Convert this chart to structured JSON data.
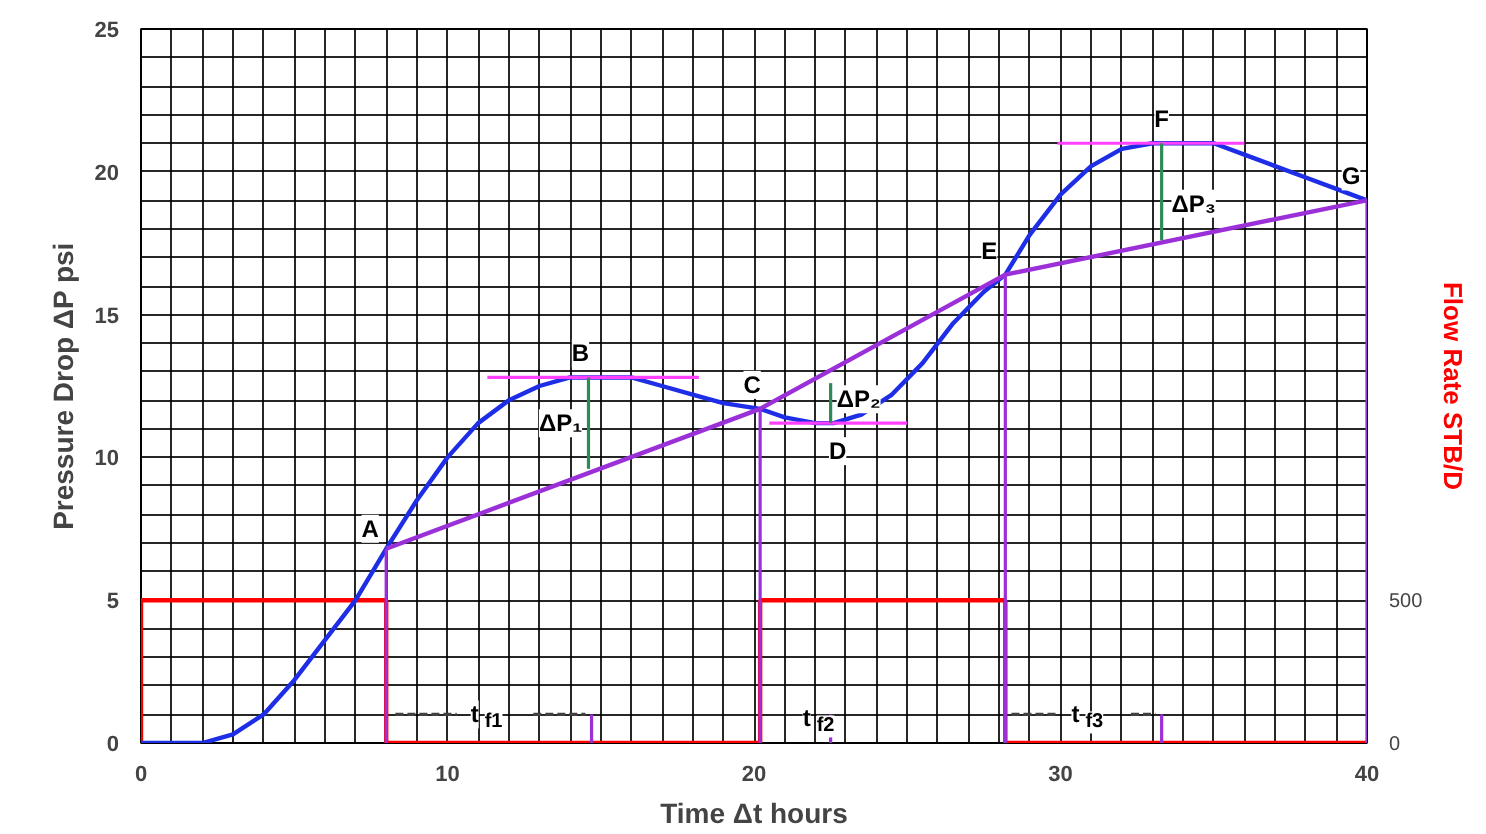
{
  "chart_data": {
    "type": "line",
    "xlabel": "Time Δt hours",
    "ylabel": "Pressure Drop ΔP psi",
    "y2label": "Flow Rate STB/D",
    "xlim": [
      0,
      40
    ],
    "ylim": [
      0,
      25
    ],
    "y2lim": [
      0,
      2500
    ],
    "xticks": [
      0,
      {
        "value": 1,
        "label": null
      },
      {
        "value": 2,
        "label": null
      },
      {
        "value": 3,
        "label": null
      },
      {
        "value": 4,
        "label": null
      },
      {
        "value": 5,
        "label": null
      },
      {
        "value": 6,
        "label": null
      },
      {
        "value": 7,
        "label": null
      },
      {
        "value": 8,
        "label": null
      },
      {
        "value": 9,
        "label": null
      },
      10,
      {
        "value": 11,
        "label": null
      },
      {
        "value": 12,
        "label": null
      },
      {
        "value": 13,
        "label": null
      },
      {
        "value": 14,
        "label": null
      },
      {
        "value": 15,
        "label": null
      },
      {
        "value": 16,
        "label": null
      },
      {
        "value": 17,
        "label": null
      },
      {
        "value": 18,
        "label": null
      },
      {
        "value": 19,
        "label": null
      },
      20,
      {
        "value": 21,
        "label": null
      },
      {
        "value": 22,
        "label": null
      },
      {
        "value": 23,
        "label": null
      },
      {
        "value": 24,
        "label": null
      },
      {
        "value": 25,
        "label": null
      },
      {
        "value": 26,
        "label": null
      },
      {
        "value": 27,
        "label": null
      },
      {
        "value": 28,
        "label": null
      },
      {
        "value": 29,
        "label": null
      },
      30,
      {
        "value": 31,
        "label": null
      },
      {
        "value": 32,
        "label": null
      },
      {
        "value": 33,
        "label": null
      },
      {
        "value": 34,
        "label": null
      },
      {
        "value": 35,
        "label": null
      },
      {
        "value": 36,
        "label": null
      },
      {
        "value": 37,
        "label": null
      },
      {
        "value": 38,
        "label": null
      },
      {
        "value": 39,
        "label": null
      },
      40
    ],
    "yticks": [
      0,
      {
        "value": 1,
        "label": null
      },
      {
        "value": 2,
        "label": null
      },
      {
        "value": 3,
        "label": null
      },
      {
        "value": 4,
        "label": null
      },
      5,
      {
        "value": 6,
        "label": null
      },
      {
        "value": 7,
        "label": null
      },
      {
        "value": 8,
        "label": null
      },
      {
        "value": 9,
        "label": null
      },
      10,
      {
        "value": 11,
        "label": null
      },
      {
        "value": 12,
        "label": null
      },
      {
        "value": 13,
        "label": null
      },
      {
        "value": 14,
        "label": null
      },
      15,
      {
        "value": 16,
        "label": null
      },
      {
        "value": 17,
        "label": null
      },
      {
        "value": 18,
        "label": null
      },
      {
        "value": 19,
        "label": null
      },
      20,
      {
        "value": 21,
        "label": null
      },
      {
        "value": 22,
        "label": null
      },
      {
        "value": 23,
        "label": null
      },
      {
        "value": 24,
        "label": null
      },
      25
    ],
    "y2ticks": [
      0,
      500
    ],
    "grid": true,
    "marker": "none",
    "series": [
      {
        "type": "step",
        "axis": "y2",
        "color": "#ff0000",
        "x": [
          0,
          0,
          8,
          20.2,
          28.2,
          40
        ],
        "values": [
          0,
          500,
          0,
          500,
          0,
          0
        ]
      },
      {
        "color": "#1e2ee6",
        "x": [
          0,
          2,
          3,
          4,
          5,
          6,
          7,
          8,
          9,
          10,
          11,
          12,
          13,
          14,
          15,
          16,
          17,
          18,
          19,
          20.2,
          21,
          22,
          22.6,
          23.5,
          24.5,
          25.5,
          26.5,
          27.5,
          28.2,
          29,
          30,
          31,
          32,
          33,
          34,
          35,
          36,
          37,
          38,
          39,
          40
        ],
        "values": [
          0,
          0,
          0.3,
          1,
          2.2,
          3.6,
          5,
          6.8,
          8.5,
          10,
          11.2,
          12,
          12.5,
          12.8,
          12.8,
          12.8,
          12.5,
          12.2,
          11.9,
          11.7,
          11.4,
          11.2,
          11.2,
          11.5,
          12.2,
          13.3,
          14.7,
          15.8,
          16.4,
          17.8,
          19.2,
          20.2,
          20.8,
          21,
          21,
          21,
          20.6,
          20.2,
          19.8,
          19.4,
          19
        ]
      },
      {
        "color": "#9b30d9",
        "x": [
          8,
          20.2,
          28.2,
          40
        ],
        "values": [
          6.8,
          11.7,
          16.4,
          19
        ]
      },
      {
        "color": "#9b30d9",
        "x": [
          8,
          8
        ],
        "values": [
          0,
          6.8
        ]
      },
      {
        "color": "#9b30d9",
        "x": [
          20.2,
          20.2
        ],
        "values": [
          0,
          11.7
        ]
      },
      {
        "color": "#9b30d9",
        "x": [
          28.2,
          28.2
        ],
        "values": [
          0,
          16.4
        ]
      },
      {
        "color": "#9b30d9",
        "x": [
          40,
          40
        ],
        "values": [
          0,
          19
        ]
      },
      {
        "color": "#9b30d9",
        "x": [
          14.7,
          14.7
        ],
        "values": [
          0,
          1
        ]
      },
      {
        "color": "#9b30d9",
        "x": [
          22.5,
          22.5
        ],
        "values": [
          0,
          1
        ]
      },
      {
        "color": "#9b30d9",
        "x": [
          33.3,
          33.3
        ],
        "values": [
          0,
          1
        ]
      },
      {
        "color": "#ff40ff",
        "x": [
          11.3,
          18.2
        ],
        "values": [
          12.8,
          12.8
        ]
      },
      {
        "color": "#ff40ff",
        "x": [
          20.5,
          25
        ],
        "values": [
          11.2,
          11.2
        ]
      },
      {
        "color": "#ff40ff",
        "x": [
          29.9,
          36
        ],
        "values": [
          21,
          21
        ]
      },
      {
        "color": "#2e8b57",
        "x": [
          14.6,
          14.6
        ],
        "values": [
          12.8,
          9.6
        ]
      },
      {
        "color": "#2e8b57",
        "x": [
          22.5,
          22.5
        ],
        "values": [
          11.2,
          12.6
        ]
      },
      {
        "color": "#2e8b57",
        "x": [
          33.3,
          33.3
        ],
        "values": [
          21,
          17.6
        ]
      },
      {
        "color": "#404040",
        "line_style": "dashed",
        "x": [
          8.3,
          10.3,
          11.4,
          12.8,
          14.5
        ],
        "values": [
          1,
          1,
          null,
          1,
          1
        ]
      },
      {
        "color": "#404040",
        "line_style": "dashed",
        "x": [
          28.4,
          29.9,
          30.8,
          32.3,
          33.1
        ],
        "values": [
          1,
          1,
          null,
          1,
          1
        ]
      }
    ],
    "annotations": [
      {
        "text": "A",
        "x": 8,
        "y": 6.8
      },
      {
        "text": "B",
        "x": 14.6,
        "y": 12.8
      },
      {
        "text": "C",
        "x": 20.2,
        "y": 11.7
      },
      {
        "text": "D",
        "x": 22.6,
        "y": 11.2
      },
      {
        "text": "E",
        "x": 28.2,
        "y": 16.4
      },
      {
        "text": "F",
        "x": 33.3,
        "y": 21
      },
      {
        "text": "G",
        "x": 40,
        "y": 19
      },
      {
        "text": "ΔP₁",
        "x": 14.6,
        "y": 11.2
      },
      {
        "text": "ΔP₂",
        "x": 22.5,
        "y": 11.9
      },
      {
        "text": "ΔP₃",
        "x": 33.3,
        "y": 19.3
      },
      {
        "text": "t$_{f1}$",
        "x": 10.3,
        "y": 1
      },
      {
        "text": "t$_{f2}$",
        "x": 22.5,
        "y": 1
      },
      {
        "text": "t$_{f3}$",
        "x": 29.9,
        "y": 1
      }
    ]
  }
}
